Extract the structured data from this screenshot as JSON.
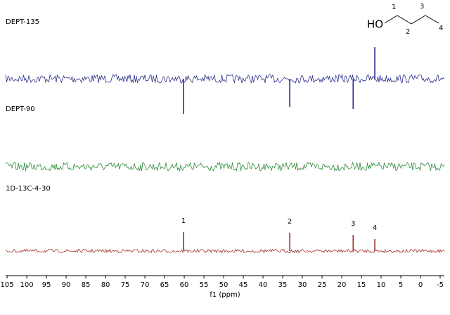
{
  "chart_data": {
    "type": "spectrum",
    "x_label": "f1 (ppm)",
    "xlim": [
      106.8,
      -7.5
    ],
    "xticks": [
      105,
      100,
      95,
      90,
      85,
      80,
      75,
      70,
      65,
      60,
      55,
      50,
      45,
      40,
      35,
      30,
      25,
      20,
      15,
      10,
      5,
      0,
      -5
    ],
    "series": [
      {
        "name": "DEPT-135",
        "color": "#2b2f8c",
        "x": [
          60.2,
          33.2,
          17.1,
          11.6
        ],
        "values": [
          -50,
          -40,
          -43,
          45
        ]
      },
      {
        "name": "DEPT-90",
        "color": "#2e8b3a",
        "x": [],
        "values": []
      },
      {
        "name": "1D-13C-4-30",
        "color": "#a0342a",
        "x": [
          60.2,
          33.2,
          17.1,
          11.6
        ],
        "values": [
          27,
          26,
          23,
          17
        ],
        "peak_labels": [
          "1",
          "2",
          "3",
          "4"
        ]
      }
    ]
  },
  "structure": {
    "group": "HO",
    "carbons": [
      "1",
      "2",
      "3",
      "4"
    ]
  }
}
